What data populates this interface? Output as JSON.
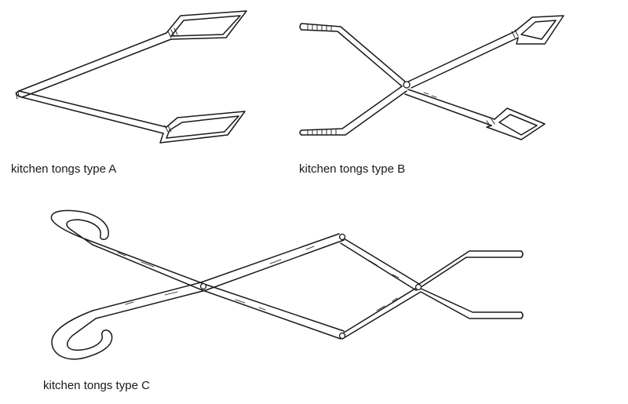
{
  "figures": [
    {
      "id": "a",
      "caption": "kitchen tongs type A"
    },
    {
      "id": "b",
      "caption": "kitchen tongs type B"
    },
    {
      "id": "c",
      "caption": "kitchen tongs type C"
    }
  ],
  "colors": {
    "ink": "#1a1a1a",
    "background": "#ffffff"
  }
}
